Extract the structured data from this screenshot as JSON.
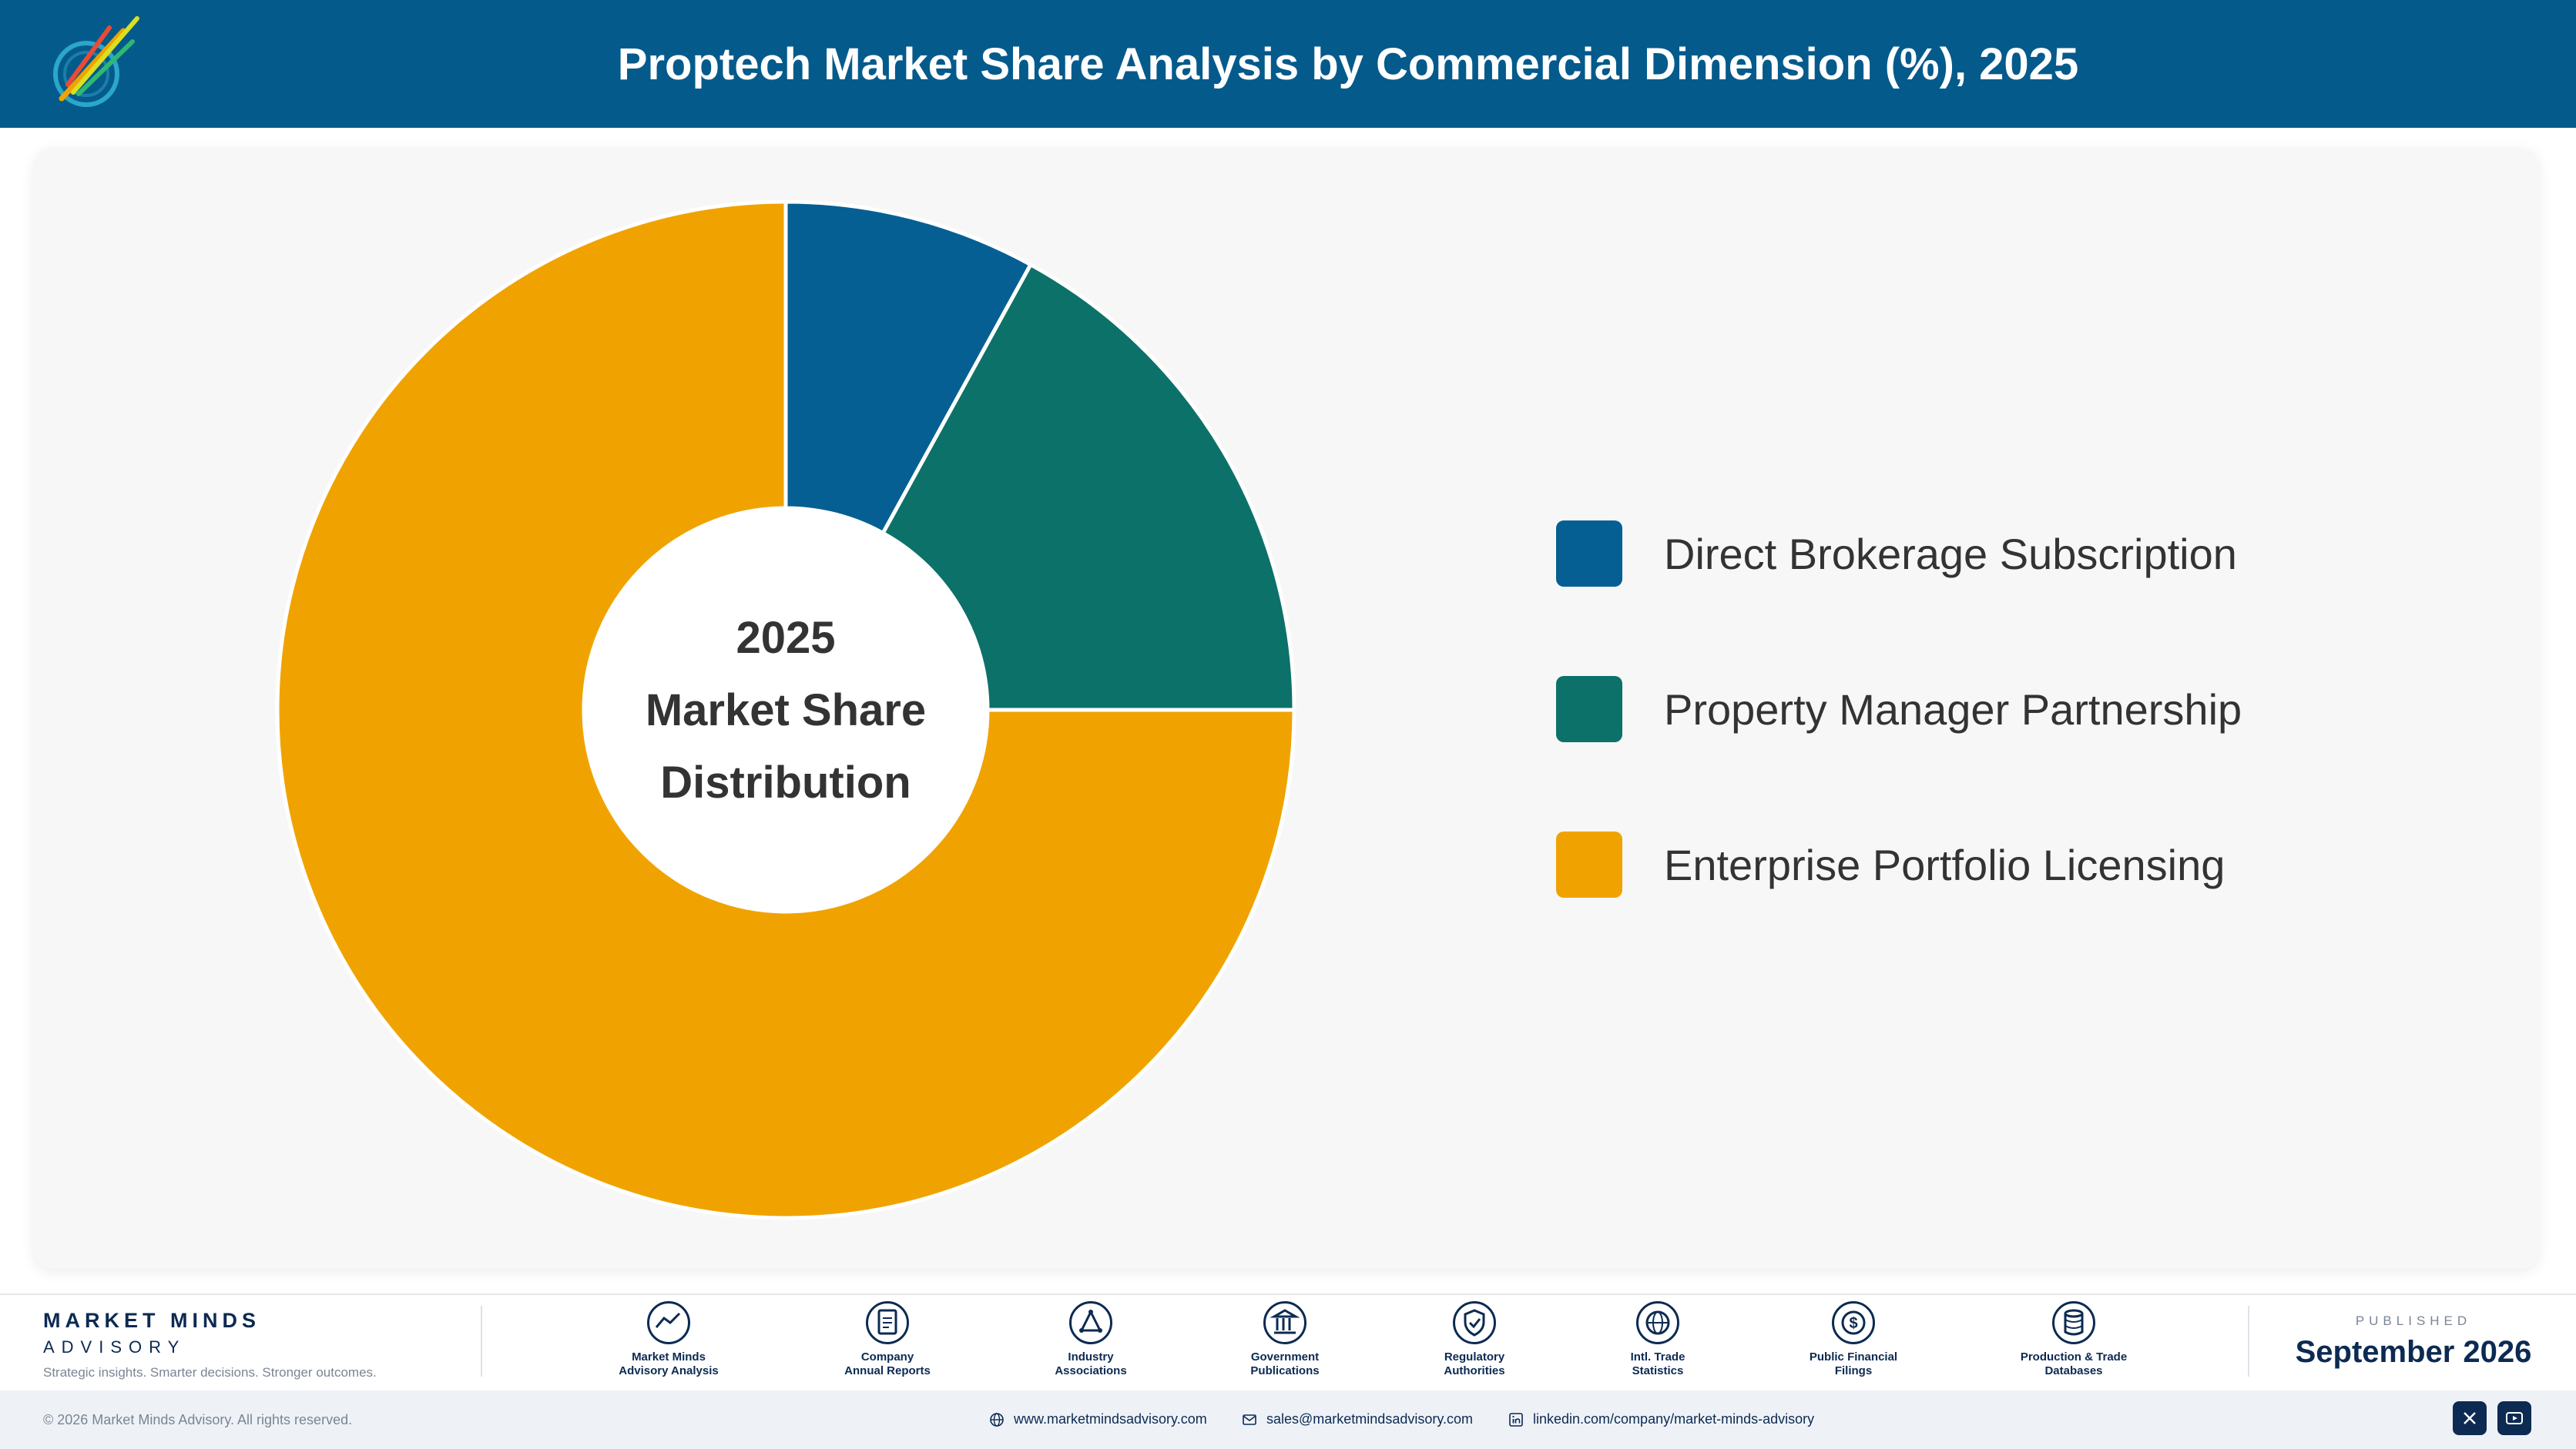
{
  "header": {
    "title": "Proptech Market Share Analysis by Commercial Dimension (%), 2025"
  },
  "chart_data": {
    "type": "pie",
    "style": "donut",
    "center_text": [
      "2025",
      "Market Share",
      "Distribution"
    ],
    "categories": [
      "Direct Brokerage Subscription",
      "Property Manager Partnership",
      "Enterprise Portfolio Licensing"
    ],
    "values": [
      8,
      17,
      75
    ],
    "colors": [
      "#055f93",
      "#0c7169",
      "#f0a300"
    ],
    "legend_position": "right"
  },
  "footer": {
    "brand_name": "MARKET MINDS",
    "brand_sub": "ADVISORY",
    "brand_tagline": "Strategic insights. Smarter decisions. Stronger outcomes.",
    "sources": [
      {
        "label": "Market Minds\nAdvisory Analysis",
        "icon": "trend-icon"
      },
      {
        "label": "Company\nAnnual Reports",
        "icon": "document-icon"
      },
      {
        "label": "Industry\nAssociations",
        "icon": "network-icon"
      },
      {
        "label": "Government\nPublications",
        "icon": "government-icon"
      },
      {
        "label": "Regulatory\nAuthorities",
        "icon": "shield-icon"
      },
      {
        "label": "Intl. Trade\nStatistics",
        "icon": "globe-icon"
      },
      {
        "label": "Public Financial\nFilings",
        "icon": "coin-icon"
      },
      {
        "label": "Production & Trade\nDatabases",
        "icon": "database-icon"
      }
    ],
    "published_label": "PUBLISHED",
    "published_date": "September 2026",
    "copyright": "© 2026 Market Minds Advisory. All rights reserved.",
    "website": "www.marketmindsadvisory.com",
    "email": "sales@marketmindsadvisory.com",
    "linkedin": "linkedin.com/company/market-minds-advisory"
  }
}
